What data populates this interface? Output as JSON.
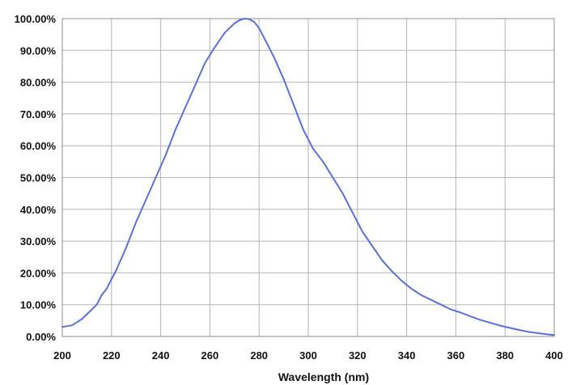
{
  "chart_data": {
    "type": "line",
    "title": "",
    "xlabel": "Wavelength (nm)",
    "ylabel": "",
    "xlim": [
      200,
      400
    ],
    "ylim": [
      0,
      100
    ],
    "grid": true,
    "legend": "none",
    "x_ticks": [
      200,
      220,
      240,
      260,
      280,
      300,
      320,
      340,
      360,
      380,
      400
    ],
    "x_tick_labels": [
      "200",
      "220",
      "240",
      "260",
      "280",
      "300",
      "320",
      "340",
      "360",
      "380",
      "400"
    ],
    "y_ticks": [
      0,
      10,
      20,
      30,
      40,
      50,
      60,
      70,
      80,
      90,
      100
    ],
    "y_tick_labels": [
      "0.00%",
      "10.00%",
      "20.00%",
      "30.00%",
      "40.00%",
      "50.00%",
      "60.00%",
      "70.00%",
      "80.00%",
      "90.00%",
      "100.00%"
    ],
    "colors": {
      "line": "#5b6fd8",
      "grid": "#b5b5b5",
      "frame": "#8c8c8c"
    },
    "series": [
      {
        "x": [
          200,
          204,
          208,
          212,
          214,
          216,
          218,
          222,
          226,
          230,
          234,
          238,
          242,
          246,
          250,
          254,
          258,
          262,
          266,
          270,
          272,
          274,
          276,
          278,
          280,
          282,
          284,
          286,
          290,
          294,
          298,
          302,
          306,
          310,
          314,
          318,
          322,
          326,
          330,
          334,
          338,
          342,
          346,
          350,
          354,
          358,
          362,
          366,
          370,
          374,
          378,
          382,
          386,
          390,
          394,
          398,
          400
        ],
        "y": [
          3,
          3.5,
          5.5,
          8.5,
          10,
          13,
          15,
          21,
          28,
          36,
          43,
          50,
          57,
          65,
          72,
          79,
          86,
          91,
          95.5,
          98.5,
          99.5,
          100,
          99.8,
          99,
          97,
          94,
          91,
          88,
          81,
          73,
          65,
          59,
          55,
          50,
          45,
          39,
          33,
          28.5,
          24,
          20.5,
          17.5,
          15,
          13,
          11.5,
          10,
          8.5,
          7.5,
          6.3,
          5.2,
          4.3,
          3.4,
          2.7,
          2,
          1.4,
          1,
          0.6,
          0.4
        ]
      }
    ]
  }
}
